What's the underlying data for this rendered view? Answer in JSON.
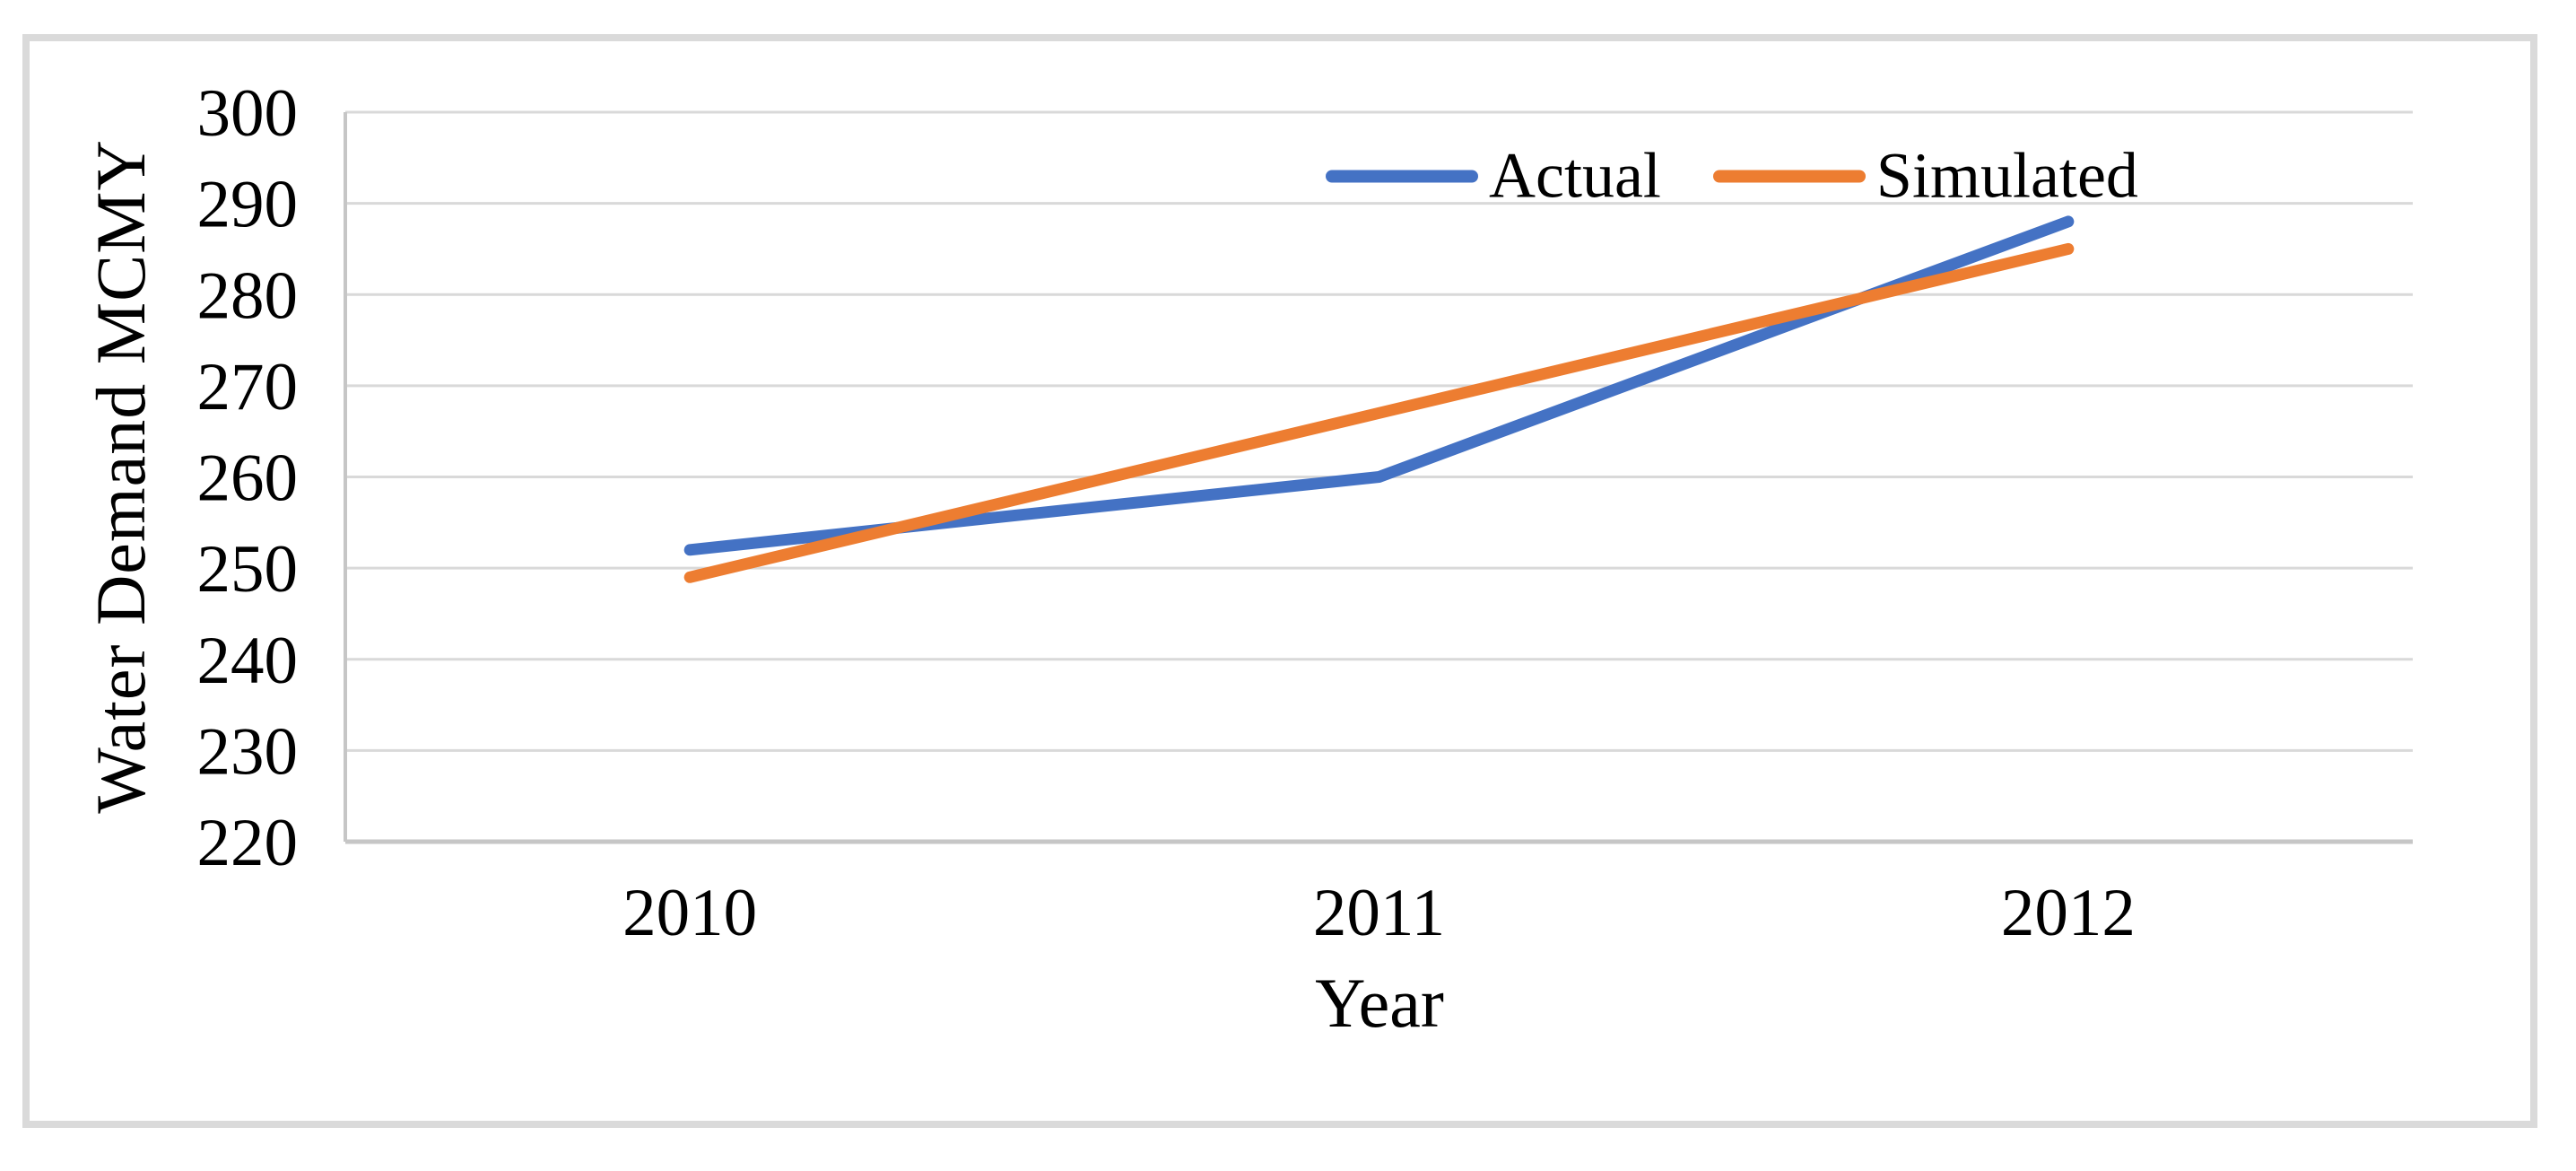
{
  "figure": {
    "frame_border_color": "#dadada",
    "background_color": "#ffffff"
  },
  "chart_data": {
    "type": "line",
    "title": "",
    "categories": [
      "2010",
      "2011",
      "2012"
    ],
    "series": [
      {
        "name": "Actual",
        "values": [
          252,
          260,
          288
        ],
        "color": "#4472C4"
      },
      {
        "name": "Simulated",
        "values": [
          249,
          267,
          285
        ],
        "color": "#ED7D31"
      }
    ],
    "xlabel": "Year",
    "ylabel": "Water Demand MCMY",
    "ylim": [
      220,
      300
    ],
    "yticks": [
      220,
      230,
      240,
      250,
      260,
      270,
      280,
      290,
      300
    ],
    "grid": true,
    "gridline_color": "#d9d9d9",
    "axis_color": "#c6c6c6",
    "tick_text_color": "#000000",
    "legend_position": "top-right-inside"
  }
}
